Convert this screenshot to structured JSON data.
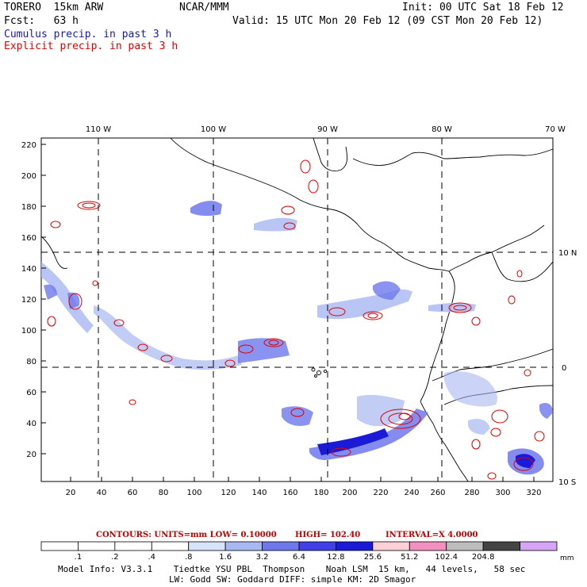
{
  "header": {
    "model": "TORERO  15km ARW",
    "org": "NCAR/MMM",
    "init": "Init: 00 UTC Sat 18 Feb 12",
    "fcst": "Fcst:   63 h",
    "valid": "Valid: 15 UTC Mon 20 Feb 12 (09 CST Mon 20 Feb 12)",
    "legend_cumulus": "Cumulus precip. in past 3 h",
    "legend_explicit": "Explicit precip. in past 3 h",
    "cumulus_color": "#1a1aa8",
    "explicit_color": "#e00000"
  },
  "map": {
    "lon_labels": [
      "110 W",
      "100 W",
      "90 W",
      "80 W",
      "70 W"
    ],
    "lat_labels": [
      "10 N",
      "0",
      "10 S"
    ],
    "y_ticks": [
      "220",
      "200",
      "180",
      "160",
      "140",
      "120",
      "100",
      "80",
      "60",
      "40",
      "20"
    ],
    "x_ticks": [
      "20",
      "40",
      "60",
      "80",
      "100",
      "120",
      "140",
      "160",
      "180",
      "200",
      "220",
      "240",
      "260",
      "280",
      "300",
      "320"
    ]
  },
  "contours": {
    "units": "CONTOURS:  UNITS=mm  LOW= 0.10000",
    "high": "HIGH=  102.40",
    "interval": "INTERVAL=X  4.0000"
  },
  "colorbar": {
    "labels": [
      ".1",
      ".2",
      ".4",
      ".8",
      "1.6",
      "3.2",
      "6.4",
      "12.8",
      "25.6",
      "51.2",
      "102.4",
      "204.8"
    ],
    "units": "mm",
    "colors": [
      "#ffffff",
      "#ffffff",
      "#ffffff",
      "#ffffff",
      "#d7e3fa",
      "#a8b8f2",
      "#6e78ec",
      "#4040e6",
      "#1a1ad8",
      "#fcd0d6",
      "#f291bf",
      "#bdbdbd",
      "#444444",
      "#d7a4f5"
    ]
  },
  "footer": {
    "line1": "Model Info: V3.3.1    Tiedtke YSU PBL  Thompson    Noah LSM  15 km,   44 levels,   58 sec",
    "line2": "LW: Godd SW: Goddard DIFF: simple KM: 2D Smagor"
  }
}
